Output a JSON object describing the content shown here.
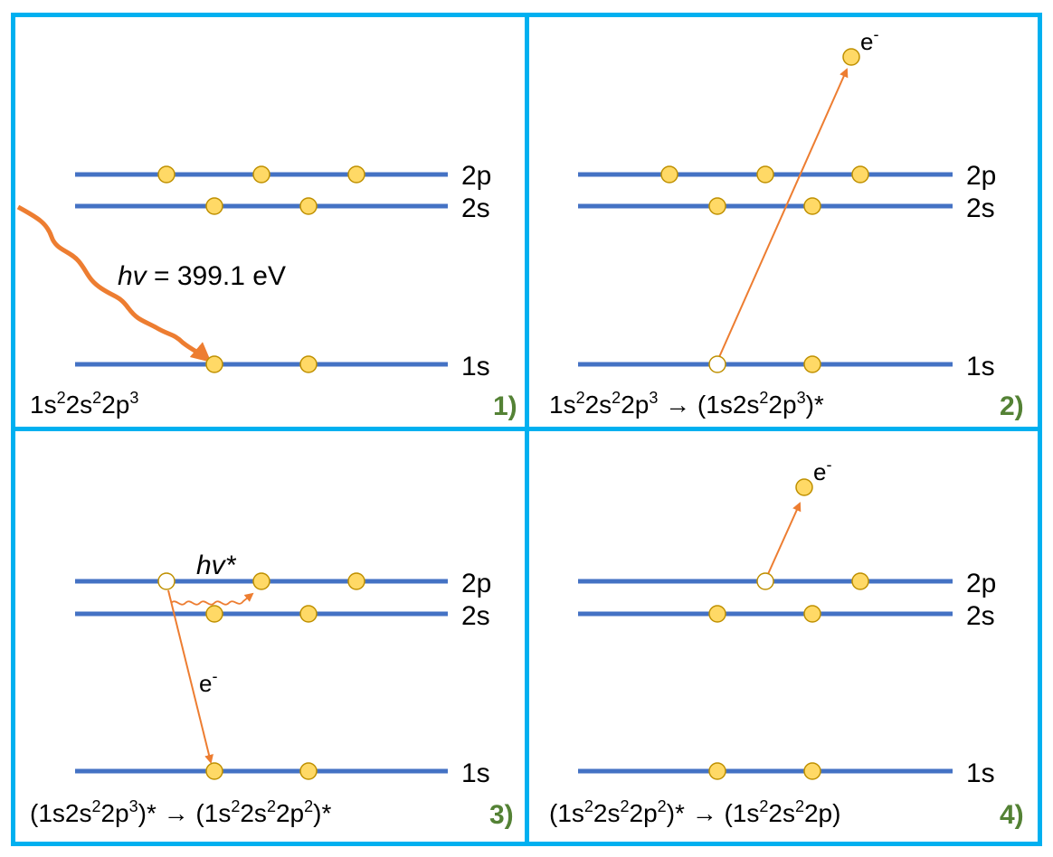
{
  "colors": {
    "border": "#00b0f0",
    "level": "#4472c4",
    "electron": "#ffd966",
    "electron_stroke": "#bf9000",
    "arrow": "#ed7d31",
    "number": "#548235"
  },
  "levels": {
    "p2": "2p",
    "s2": "2s",
    "s1": "1s"
  },
  "electron_symbol": {
    "base": "e",
    "sup": "-"
  },
  "panels": [
    {
      "number": "1)",
      "photon": {
        "h": "hv",
        "rest": " = 399.1 eV"
      },
      "config": [
        [
          "1s",
          "2"
        ],
        [
          "2s",
          "2"
        ],
        [
          "2p",
          "3"
        ]
      ]
    },
    {
      "number": "2)",
      "config": [
        [
          "1s",
          "2"
        ],
        [
          "2s",
          "2"
        ],
        [
          "2p",
          "3"
        ],
        [
          " → (1s2s",
          "2"
        ],
        [
          "2p",
          "3"
        ],
        [
          ")*",
          ""
        ]
      ]
    },
    {
      "number": "3)",
      "photon": {
        "h": "hv",
        "rest": "*"
      },
      "config": [
        [
          "(1s2s",
          "2"
        ],
        [
          "2p",
          "3"
        ],
        [
          ")* → (1s",
          "2"
        ],
        [
          "2s",
          "2"
        ],
        [
          "2p",
          "2"
        ],
        [
          ")*",
          ""
        ]
      ]
    },
    {
      "number": "4)",
      "config": [
        [
          "(1s",
          "2"
        ],
        [
          "2s",
          "2"
        ],
        [
          "2p",
          "2"
        ],
        [
          ")* → (1s",
          "2"
        ],
        [
          "2s",
          "2"
        ],
        [
          "2p)",
          ""
        ]
      ]
    }
  ]
}
